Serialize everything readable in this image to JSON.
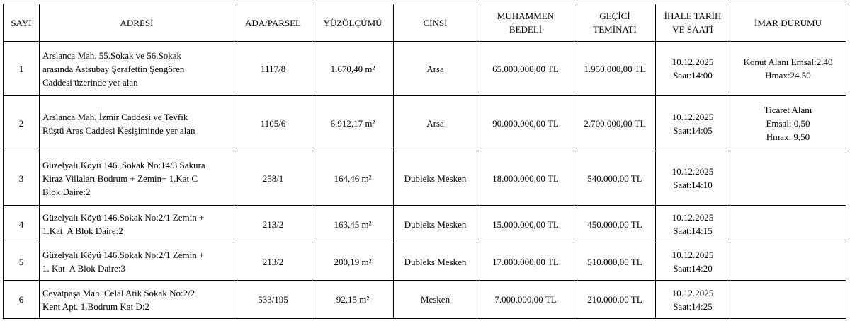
{
  "table": {
    "headers": [
      "SAYI",
      "ADRESİ",
      "ADA/PARSEL",
      "YÜZÖLÇÜMÜ",
      "CİNSİ",
      [
        "MUHAMMEN",
        "BEDELİ"
      ],
      [
        "GEÇİCİ",
        "TEMİNATI"
      ],
      [
        "İHALE TARİH",
        "VE SAATİ"
      ],
      "İMAR DURUMU"
    ],
    "rows": [
      [
        "1",
        [
          "Arslanca Mah. 55.Sokak ve 56.Sokak",
          "arasında Astsubay Şerafettin Şengören",
          "Caddesi üzerinde yer alan"
        ],
        "1117/8",
        "1.670,40 m²",
        "Arsa",
        "65.000.000,00 TL",
        "1.950.000,00 TL",
        [
          "10.12.2025",
          "Saat:14:00"
        ],
        [
          "Konut Alanı Emsal:2.40",
          "Hmax:24.50"
        ]
      ],
      [
        "2",
        [
          "Arslanca Mah. İzmir Caddesi ve Tevfik",
          "Rüştü Aras Caddesi Kesişiminde yer alan"
        ],
        "1105/6",
        "6.912,17 m²",
        "Arsa",
        "90.000.000,00 TL",
        "2.700.000,00 TL",
        [
          "10.12.2025",
          "Saat:14:05"
        ],
        [
          "Ticaret Alanı",
          "Emsal: 0,50",
          "Hmax: 9,50"
        ]
      ],
      [
        "3",
        [
          "Güzelyalı Köyü 146. Sokak No:14/3 Sakura",
          "Kiraz Villaları Bodrum + Zemin+ 1.Kat C",
          "Blok Daire:2"
        ],
        "258/1",
        "164,46 m²",
        "Dubleks Mesken",
        "18.000.000,00 TL",
        "540.000,00 TL",
        [
          "10.12.2025",
          "Saat:14:10"
        ]
      ],
      [
        "4",
        [
          "Güzelyalı Köyü 146.Sokak No:2/1 Zemin +",
          "1.Kat  A Blok Daire:2"
        ],
        "213/2",
        "163,45 m²",
        "Dubleks Mesken",
        "15.000.000,00 TL",
        "450.000,00 TL",
        [
          "10.12.2025",
          "Saat:14:15"
        ]
      ],
      [
        "5",
        [
          "Güzelyalı Köyü 146.Sokak No:2/1 Zemin +",
          "1. Kat  A Blok Daire:3"
        ],
        "213/2",
        "200,19 m²",
        "Dubleks Mesken",
        "17.000.000,00 TL",
        "510.000,00 TL",
        [
          "10.12.2025",
          "Saat:14:20"
        ]
      ],
      [
        "6",
        [
          "Cevatpaşa Mah. Celal Atik Sokak No:2/2",
          "Kent Apt. 1.Bodrum Kat D:2"
        ],
        "533/195",
        "92,15 m²",
        "Mesken",
        "7.000.000,00 TL",
        "210.000,00 TL",
        [
          "10.12.2025",
          "Saat:14:25"
        ]
      ]
    ]
  }
}
